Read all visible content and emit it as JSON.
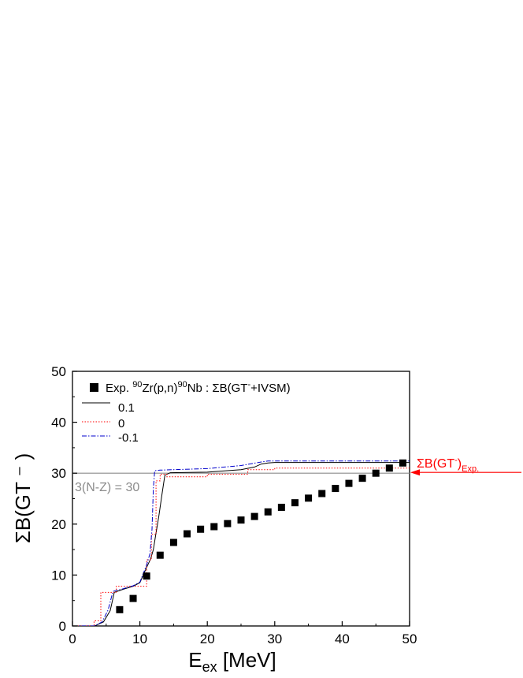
{
  "chart_data": {
    "type": "line",
    "xlabel": "E",
    "xlabel_sub": "ex",
    "xlabel_unit": " [MeV]",
    "ylabel": "ΣB(GT ⁻ )",
    "xlim": [
      0,
      50
    ],
    "ylim": [
      0,
      50
    ],
    "x_ticks": [
      0,
      10,
      20,
      30,
      40,
      50
    ],
    "y_ticks": [
      0,
      10,
      20,
      30,
      40,
      50
    ],
    "x_tick_labels": [
      "0",
      "10",
      "20",
      "30",
      "40",
      "50"
    ],
    "y_tick_labels": [
      "0",
      "10",
      "20",
      "30",
      "40",
      "50"
    ],
    "grid": false,
    "legend_position": "top-left",
    "legend": {
      "exp_prefix": "Exp.  ",
      "exp_mass1": "90",
      "exp_mid": "Zr(p,n)",
      "exp_mass2": "90",
      "exp_suffix": "Nb : ΣB(GT",
      "exp_sup": "-",
      "exp_end": "+IVSM)"
    },
    "reference_line": {
      "y": 30,
      "label": "3(N-Z) = 30",
      "color": "#8c8c8c"
    },
    "experimental_sum": {
      "y": 30,
      "label": "ΣB(GT",
      "label_sup": "-",
      "label_close": ")",
      "label_sub": "Exp.",
      "color": "#ff0000"
    },
    "series": [
      {
        "name": "Exp.",
        "style": "square-markers",
        "color": "#000000",
        "x": [
          7,
          9,
          11,
          13,
          15,
          17,
          19,
          21,
          23,
          25,
          27,
          29,
          31,
          33,
          35,
          37,
          39,
          41,
          43,
          45,
          47,
          49
        ],
        "y": [
          3.2,
          5.4,
          9.8,
          13.9,
          16.4,
          18.1,
          19.0,
          19.5,
          20.1,
          20.8,
          21.5,
          22.4,
          23.3,
          24.2,
          25.1,
          26.0,
          27.0,
          28.0,
          29.0,
          30.0,
          31.0,
          32.0
        ]
      },
      {
        "name": "0.1",
        "style": "solid",
        "color": "#000000",
        "x": [
          0,
          3.3,
          4.6,
          5.6,
          6.2,
          7.5,
          9.0,
          10.0,
          11.0,
          11.6,
          12.0,
          12.3,
          12.8,
          13.3,
          13.7,
          14.5,
          20,
          25,
          27,
          28,
          29,
          30,
          35,
          40,
          45,
          50
        ],
        "y": [
          0,
          0,
          0.8,
          3.0,
          6.6,
          7.2,
          7.8,
          8.5,
          11.5,
          13.2,
          15.0,
          17.5,
          21.5,
          26.0,
          29.6,
          30.1,
          30.2,
          30.7,
          31.2,
          31.8,
          32.0,
          32.1,
          32.1,
          32.1,
          32.1,
          32.1
        ]
      },
      {
        "name": "0",
        "style": "dotted",
        "color": "#ff0000",
        "x": [
          0,
          3.2,
          3.2,
          4.2,
          4.2,
          6.5,
          6.5,
          11.0,
          11.0,
          11.7,
          11.7,
          12.4,
          12.4,
          13.0,
          13.0,
          14.0,
          14.0,
          20.0,
          20.0,
          26.0,
          26.0,
          30.0,
          30.0,
          50
        ],
        "y": [
          0,
          0,
          1.0,
          1.0,
          6.6,
          6.6,
          7.8,
          7.8,
          13.0,
          13.0,
          18.0,
          18.0,
          28.5,
          28.5,
          29.8,
          29.8,
          29.3,
          29.3,
          29.8,
          29.8,
          30.7,
          30.7,
          31.0,
          31.0
        ]
      },
      {
        "name": "-0.1",
        "style": "dash-dot",
        "color": "#0000cc",
        "x": [
          0,
          3.3,
          4.4,
          5.3,
          6.0,
          7.5,
          9.0,
          10.0,
          11.0,
          11.5,
          11.8,
          12.0,
          12.2,
          13.0,
          15,
          20,
          25,
          28,
          29,
          30,
          35,
          40,
          45,
          50
        ],
        "y": [
          0,
          0,
          0.8,
          3.2,
          6.8,
          7.3,
          7.9,
          8.6,
          12.0,
          14.2,
          19.0,
          27.0,
          30.5,
          30.6,
          30.7,
          30.9,
          31.5,
          32.2,
          32.4,
          32.4,
          32.4,
          32.4,
          32.4,
          32.4
        ]
      }
    ]
  }
}
